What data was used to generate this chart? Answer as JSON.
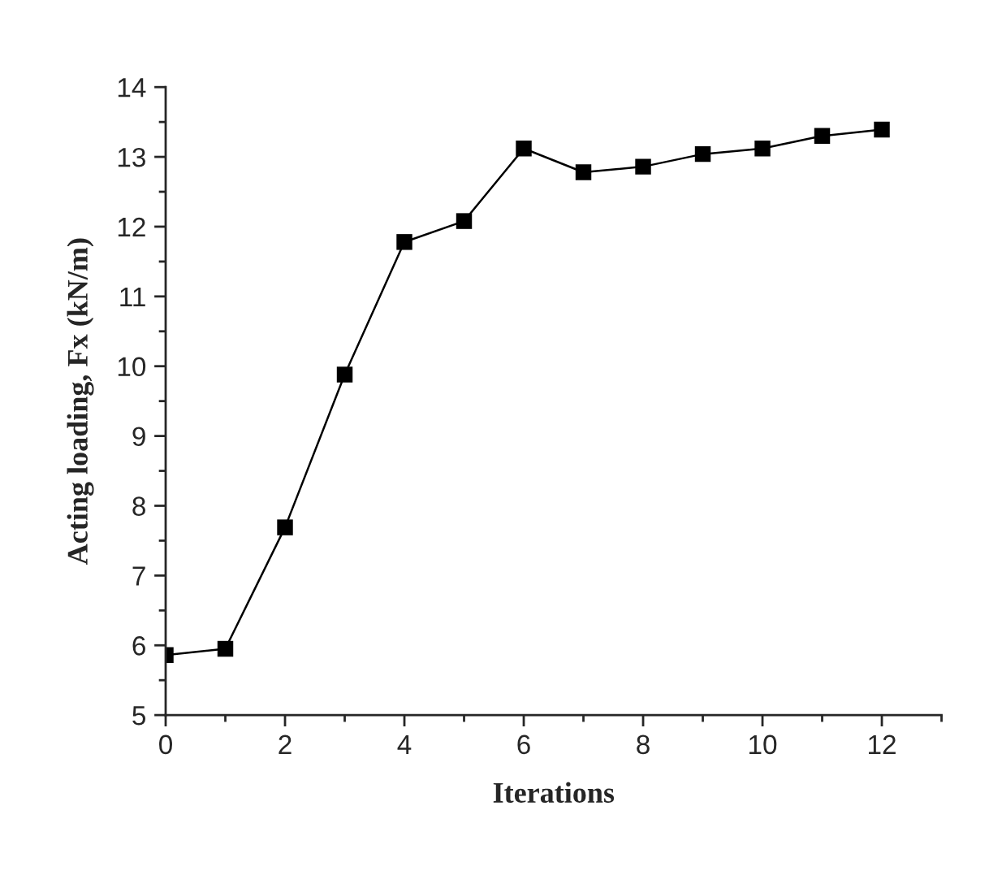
{
  "chart_data": {
    "type": "line",
    "xlabel": "Iterations",
    "ylabel": "Acting loading, Fx (kN/m)",
    "x": [
      0,
      1,
      2,
      3,
      4,
      5,
      6,
      7,
      8,
      9,
      10,
      11,
      12
    ],
    "series": [
      {
        "color": "#000000",
        "values": [
          5.86,
          5.95,
          7.69,
          9.88,
          11.78,
          12.08,
          13.12,
          12.78,
          12.86,
          13.04,
          13.12,
          13.3,
          13.39
        ]
      }
    ],
    "xlim": [
      0,
      13
    ],
    "xticks": [
      0,
      2,
      4,
      6,
      8,
      10,
      12
    ],
    "ylim": [
      5,
      14
    ],
    "yticks": [
      5,
      6,
      7,
      8,
      9,
      10,
      11,
      12,
      13,
      14
    ],
    "marker": "square",
    "line_style": "solid",
    "grid": false,
    "legend": false
  }
}
